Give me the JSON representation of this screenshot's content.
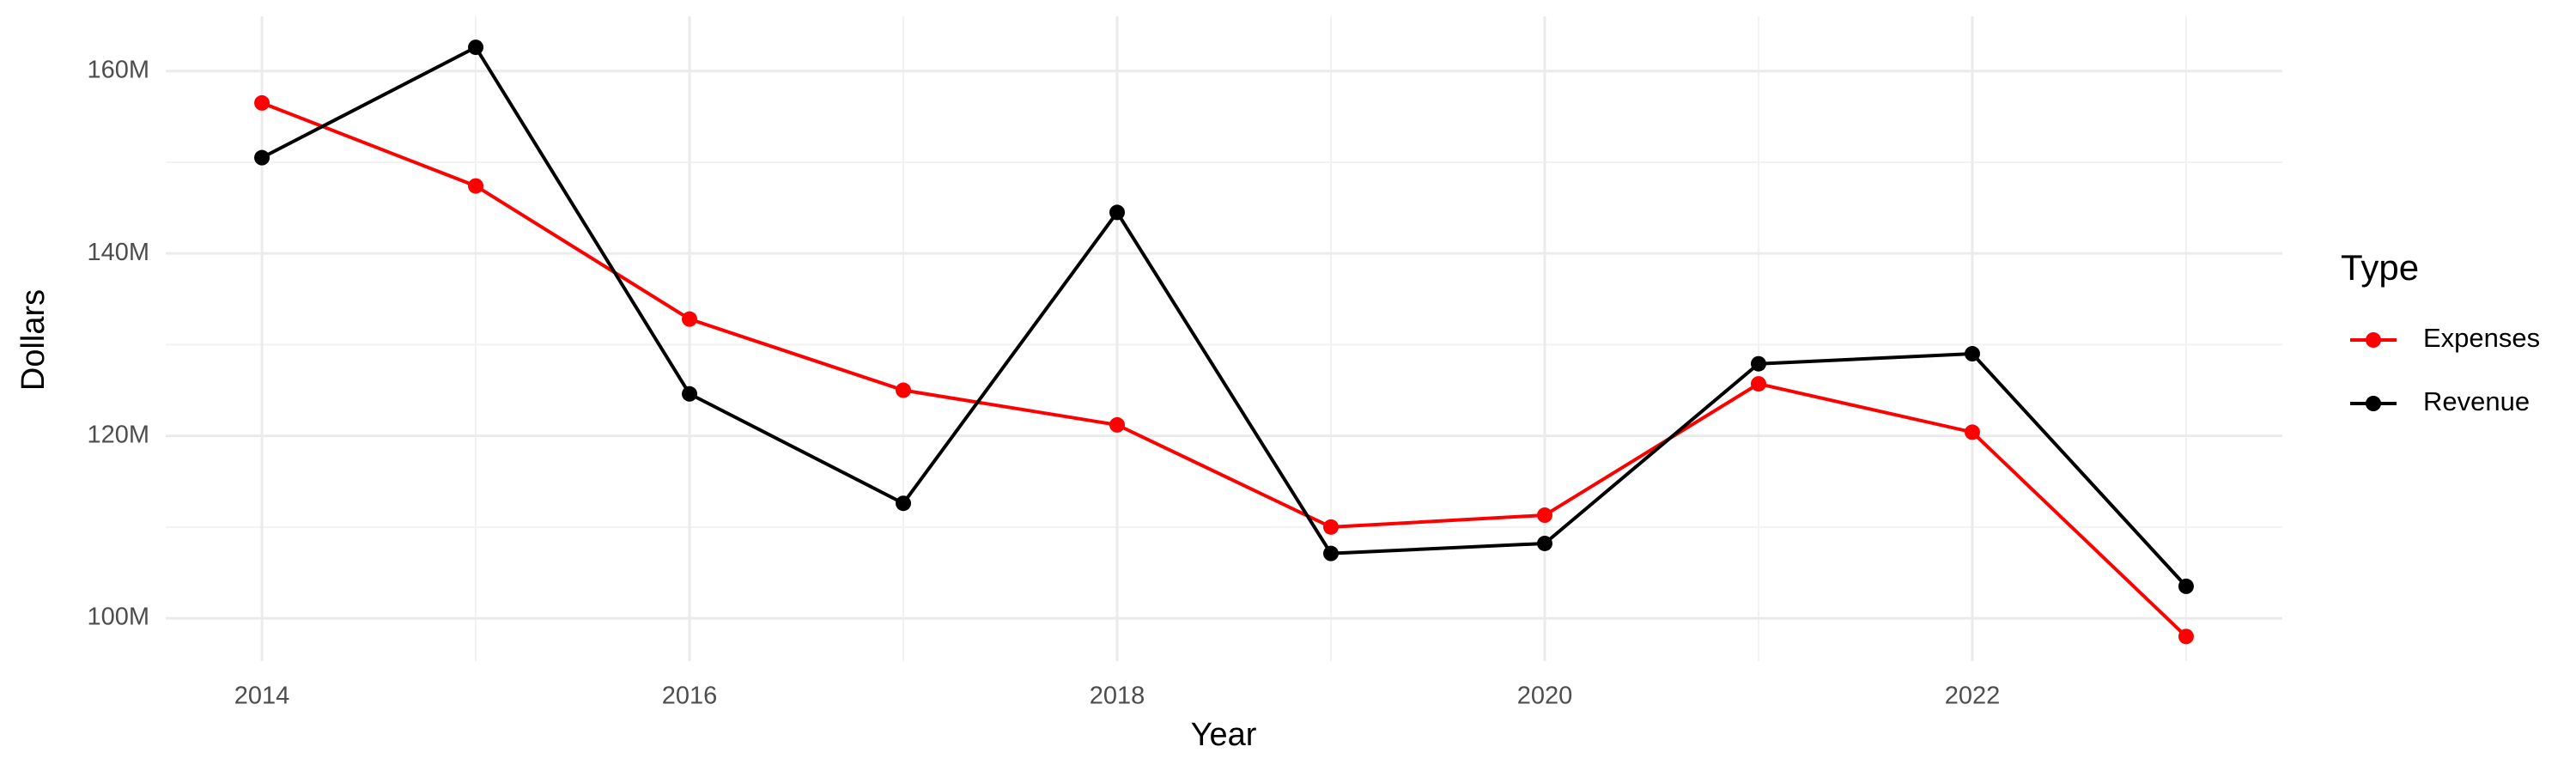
{
  "chart_data": {
    "type": "line",
    "x_label": "Year",
    "y_label": "Dollars",
    "legend_title": "Type",
    "legend_position": "right",
    "grid": true,
    "minor_grid": true,
    "x": [
      2014,
      2015,
      2016,
      2017,
      2018,
      2019,
      2020,
      2021,
      2022,
      2023
    ],
    "series": [
      {
        "name": "Expenses",
        "color": "#ff0000",
        "values": [
          156500000,
          147400000,
          132800000,
          125000000,
          121200000,
          110000000,
          111300000,
          125700000,
          120400000,
          98000000
        ]
      },
      {
        "name": "Revenue",
        "color": "#000000",
        "values": [
          150500000,
          162600000,
          124600000,
          112600000,
          144500000,
          107100000,
          108200000,
          127900000,
          129000000,
          103500000
        ]
      }
    ],
    "xlim": [
      2013.55,
      2023.45
    ],
    "xticks": [
      2014,
      2016,
      2018,
      2020,
      2022
    ],
    "ylim": [
      95300000,
      166000000
    ],
    "yticks": [
      {
        "value": 100000000,
        "label": "100M"
      },
      {
        "value": 120000000,
        "label": "120M"
      },
      {
        "value": 140000000,
        "label": "140M"
      },
      {
        "value": 160000000,
        "label": "160M"
      }
    ]
  }
}
